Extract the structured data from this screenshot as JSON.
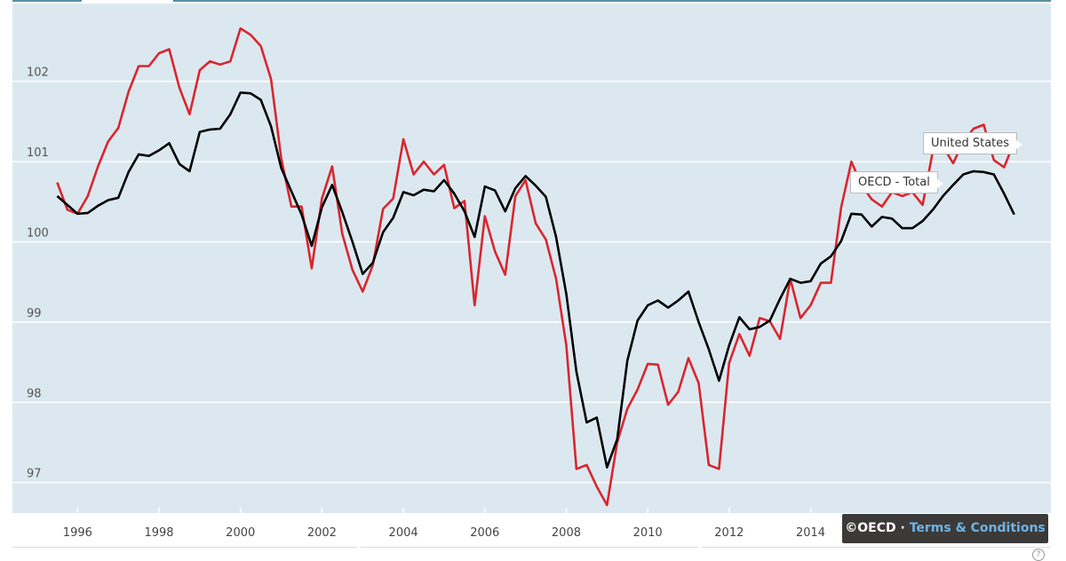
{
  "chart_data": {
    "type": "line",
    "title": "",
    "xlabel": "",
    "ylabel": "",
    "x_start": 1995.5,
    "x_step": 0.25,
    "xlim": [
      1994.4,
      2019.9
    ],
    "ylim": [
      96.62,
      102.97
    ],
    "grid": "horizontal",
    "yticks": [
      "97",
      "98",
      "99",
      "100",
      "101",
      "102"
    ],
    "xticks": [
      "1996",
      "1998",
      "2000",
      "2002",
      "2004",
      "2006",
      "2008",
      "2010",
      "2012",
      "2014"
    ],
    "series": [
      {
        "name": "United States",
        "color": "#d9262e",
        "values": [
          100.74,
          100.4,
          100.35,
          100.57,
          100.94,
          101.25,
          101.42,
          101.87,
          102.19,
          102.19,
          102.35,
          102.4,
          101.92,
          101.59,
          102.14,
          102.25,
          102.21,
          102.25,
          102.66,
          102.58,
          102.44,
          102.03,
          101.04,
          100.44,
          100.44,
          99.67,
          100.54,
          100.94,
          100.1,
          99.65,
          99.38,
          99.71,
          100.41,
          100.54,
          101.28,
          100.84,
          101.0,
          100.84,
          100.96,
          100.42,
          100.51,
          99.21,
          100.32,
          99.88,
          99.59,
          100.57,
          100.77,
          100.23,
          100.03,
          99.54,
          98.71,
          97.17,
          97.22,
          96.95,
          96.72,
          97.5,
          97.92,
          98.16,
          98.48,
          98.47,
          97.97,
          98.13,
          98.55,
          98.24,
          97.22,
          97.17,
          98.49,
          98.85,
          98.58,
          99.05,
          99.01,
          98.79,
          99.54,
          99.05,
          99.21,
          99.49,
          99.49,
          100.43,
          101.0,
          100.71,
          100.53,
          100.44,
          100.62,
          100.57,
          100.62,
          100.46,
          101.13,
          101.19,
          100.98,
          101.25,
          101.41,
          101.46,
          101.02,
          100.93,
          101.24
        ]
      },
      {
        "name": "OECD - Total",
        "color": "#000000",
        "values": [
          100.57,
          100.46,
          100.35,
          100.36,
          100.45,
          100.52,
          100.55,
          100.87,
          101.09,
          101.07,
          101.14,
          101.23,
          100.97,
          100.88,
          101.37,
          101.4,
          101.41,
          101.59,
          101.86,
          101.85,
          101.77,
          101.44,
          100.92,
          100.63,
          100.34,
          99.95,
          100.43,
          100.71,
          100.37,
          100.0,
          99.6,
          99.74,
          100.12,
          100.3,
          100.62,
          100.58,
          100.65,
          100.63,
          100.77,
          100.6,
          100.38,
          100.06,
          100.69,
          100.64,
          100.38,
          100.67,
          100.82,
          100.7,
          100.56,
          100.06,
          99.35,
          98.38,
          97.75,
          97.81,
          97.19,
          97.54,
          98.52,
          99.02,
          99.21,
          99.27,
          99.18,
          99.27,
          99.38,
          99.0,
          98.66,
          98.27,
          98.71,
          99.06,
          98.91,
          98.94,
          99.02,
          99.29,
          99.54,
          99.49,
          99.51,
          99.73,
          99.82,
          100.01,
          100.35,
          100.34,
          100.19,
          100.31,
          100.29,
          100.17,
          100.17,
          100.26,
          100.4,
          100.57,
          100.71,
          100.84,
          100.88,
          100.87,
          100.84,
          100.6,
          100.34
        ]
      }
    ]
  },
  "footer": {
    "copyright": "©OECD",
    "separator": "·",
    "terms_link": "Terms & Conditions",
    "help": "?"
  }
}
